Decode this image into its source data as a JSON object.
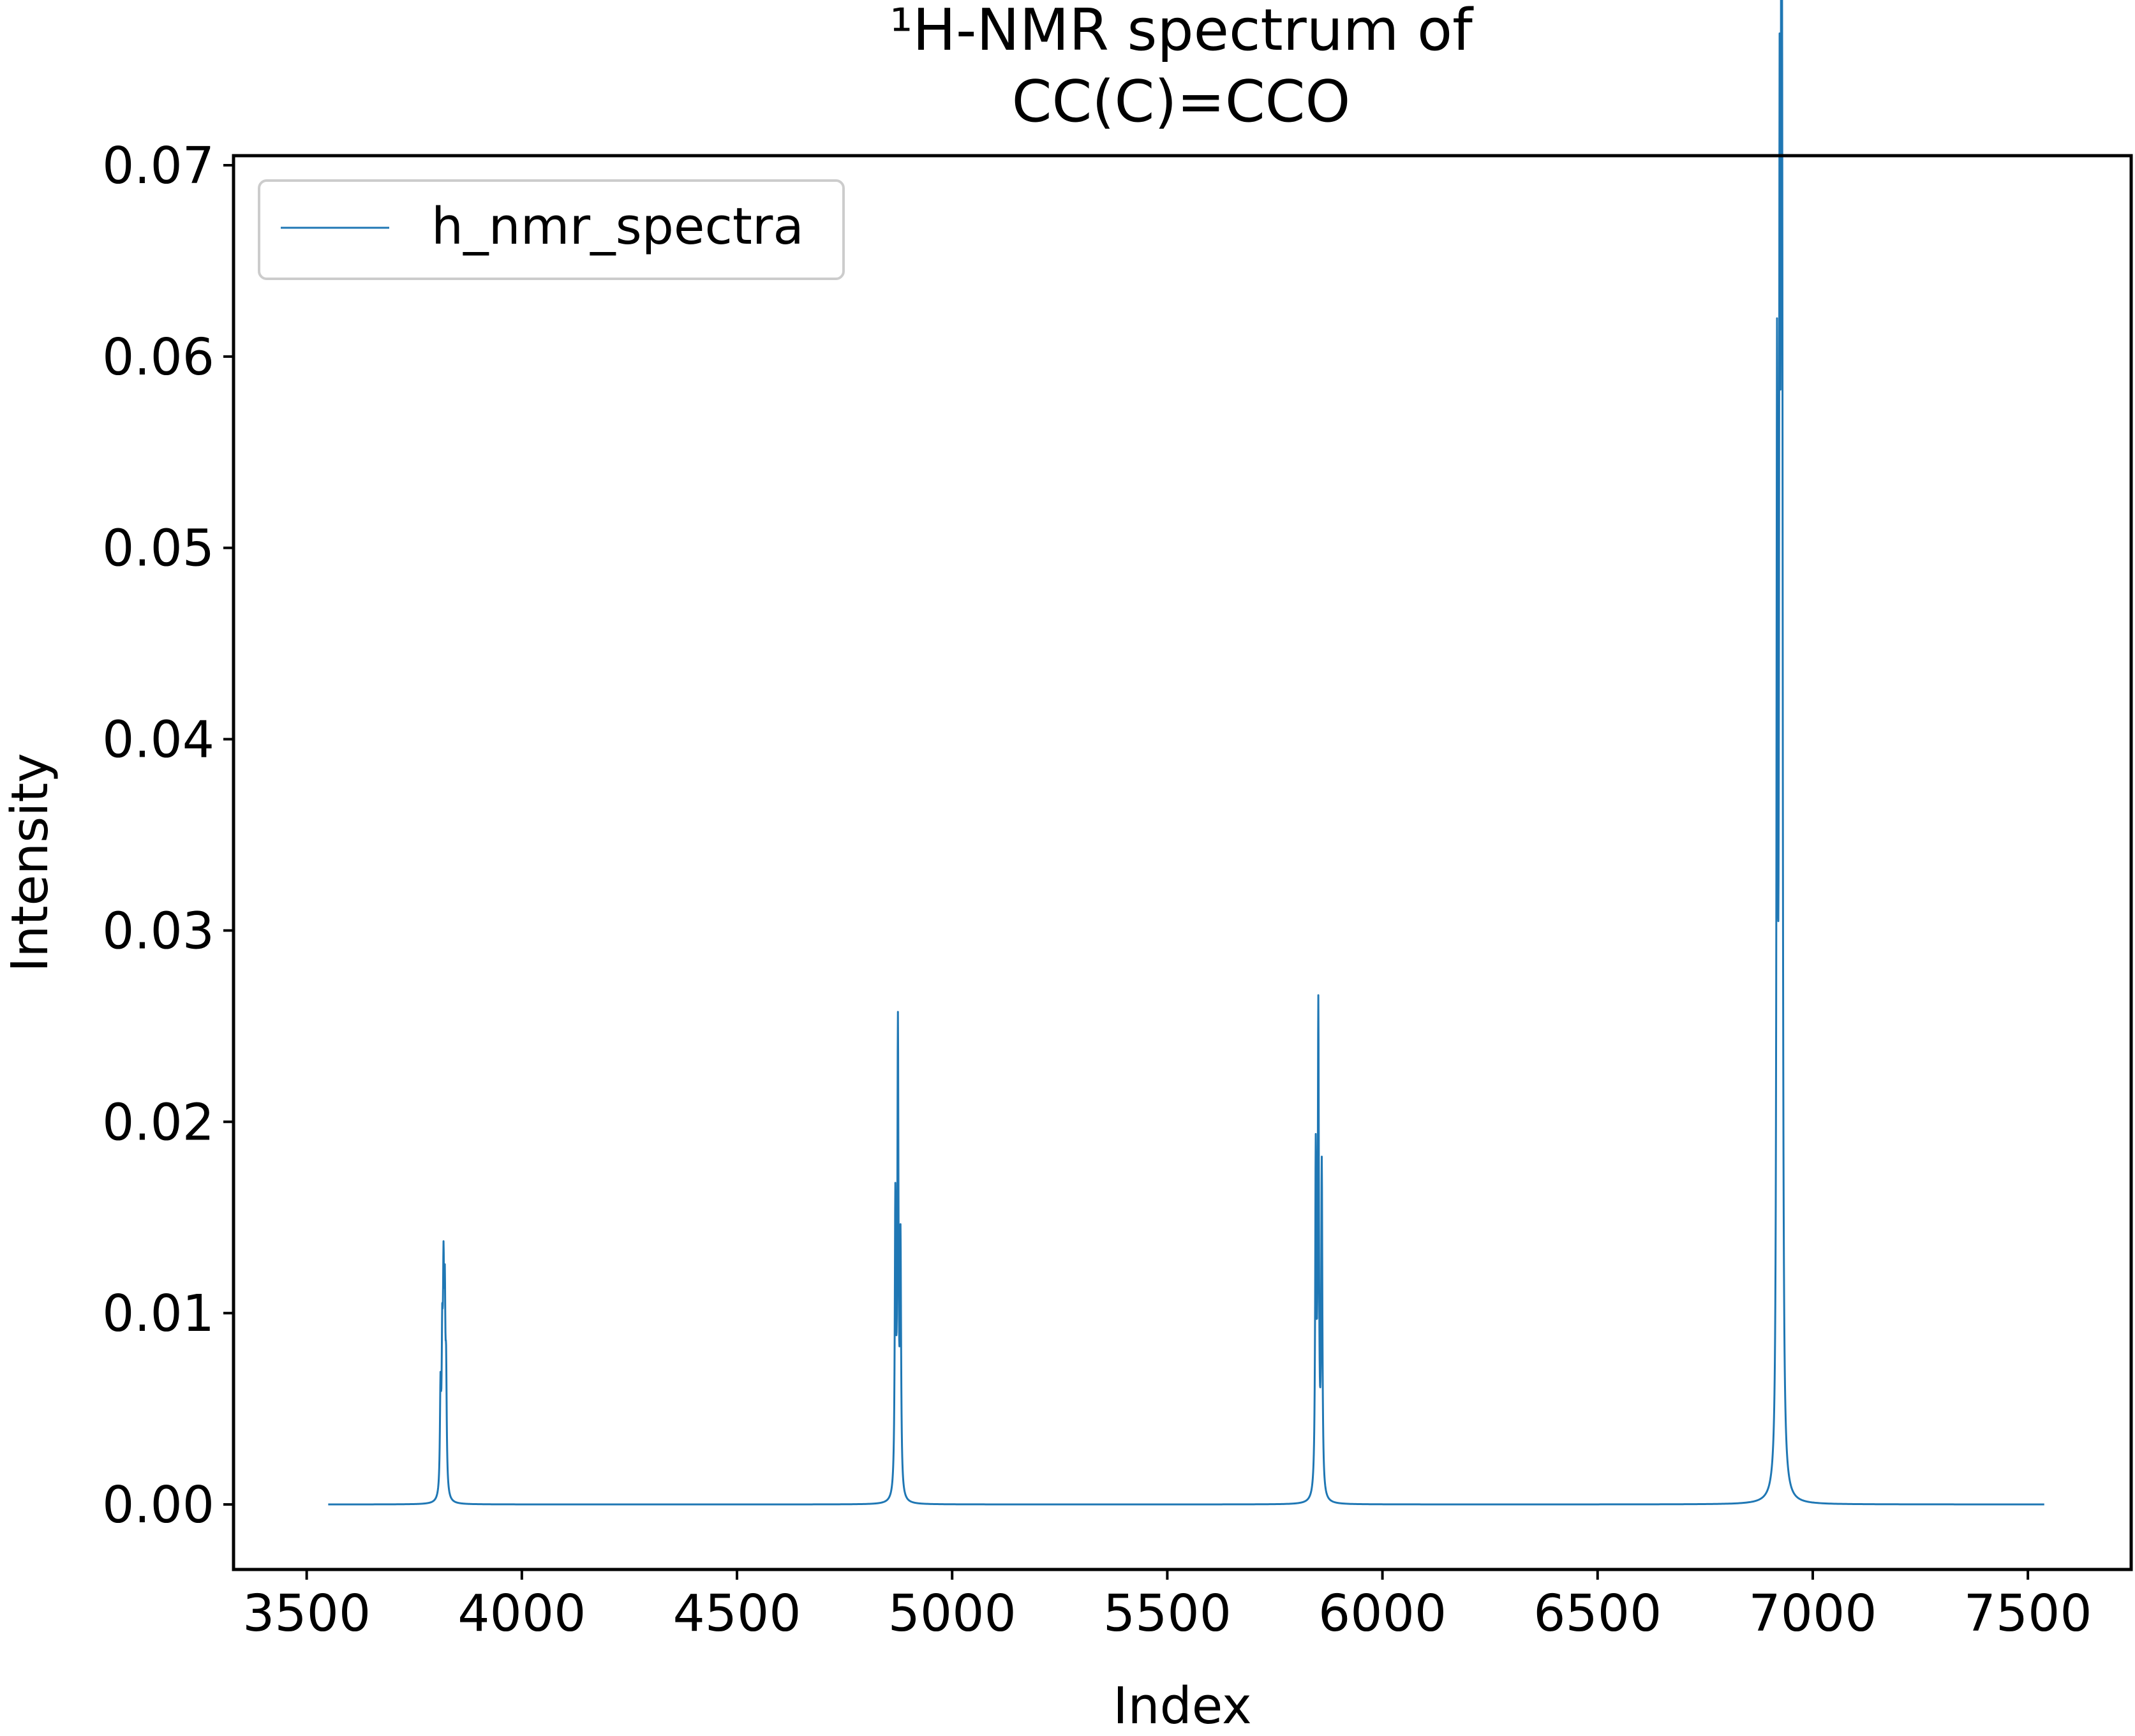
{
  "chart_data": {
    "type": "line",
    "title": "¹H-NMR spectrum of",
    "subtitle": "CC(C)=CCO",
    "xlabel": "Index",
    "ylabel": "Intensity",
    "xlim": [
      3330,
      7740
    ],
    "ylim": [
      -0.0034,
      0.0705
    ],
    "xticks": [
      3500,
      4000,
      4500,
      5000,
      5500,
      6000,
      6500,
      7000,
      7500
    ],
    "yticks": [
      0.0,
      0.01,
      0.02,
      0.03,
      0.04,
      0.05,
      0.06,
      0.07
    ],
    "xtick_labels": [
      "3500",
      "4000",
      "4500",
      "5000",
      "5500",
      "6000",
      "6500",
      "7000",
      "7500"
    ],
    "ytick_labels": [
      "0.00",
      "0.01",
      "0.02",
      "0.03",
      "0.04",
      "0.05",
      "0.06",
      "0.07"
    ],
    "grid": false,
    "legend": {
      "position": "top-left",
      "entries": [
        "h_nmr_spectra"
      ]
    },
    "x_range": [
      3550,
      7540
    ],
    "series": [
      {
        "name": "h_nmr_spectra",
        "color": "#1f77b4",
        "baseline": 0.0,
        "linewidth": 1,
        "peaks": [
          {
            "x": 3811,
            "height": 0.0052
          },
          {
            "x": 3815,
            "height": 0.0069
          },
          {
            "x": 3818,
            "height": 0.0097
          },
          {
            "x": 3821,
            "height": 0.0086
          },
          {
            "x": 3824,
            "height": 0.0055
          },
          {
            "x": 4868,
            "height": 0.015
          },
          {
            "x": 4874,
            "height": 0.0239
          },
          {
            "x": 4880,
            "height": 0.0128
          },
          {
            "x": 5845,
            "height": 0.0175
          },
          {
            "x": 5851,
            "height": 0.0248
          },
          {
            "x": 5859,
            "height": 0.017
          },
          {
            "x": 6917,
            "height": 0.0555
          },
          {
            "x": 6923,
            "height": 0.061
          },
          {
            "x": 6927,
            "height": 0.0673
          },
          {
            "x": 6929,
            "height": 0.044
          }
        ],
        "peak_halfwidth": 1.6
      }
    ]
  }
}
